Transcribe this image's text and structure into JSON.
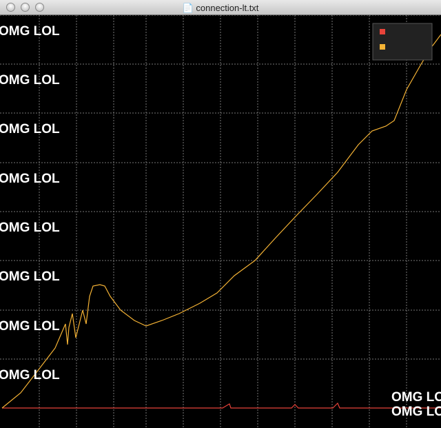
{
  "window_title": "connection-lt.txt",
  "chart_data": {
    "type": "line",
    "xlim": [
      -3,
      637
    ],
    "ylim": [
      -29,
      570
    ],
    "xticks": [
      54,
      108,
      162,
      209,
      263,
      317,
      371,
      425,
      479,
      533,
      587
    ],
    "yticks": [
      {
        "value": 71,
        "label": "OMG LOL"
      },
      {
        "value": 142,
        "label": "OMG LOL"
      },
      {
        "value": 214,
        "label": "OMG LOL"
      },
      {
        "value": 285,
        "label": "OMG LOL"
      },
      {
        "value": 356,
        "label": "OMG LOL"
      },
      {
        "value": 428,
        "label": "OMG LOL"
      },
      {
        "value": 499,
        "label": "OMG LOL"
      },
      {
        "value": 570,
        "label": "OMG LOL"
      }
    ],
    "right_labels": [
      "OMG LOL",
      "OMG LOL"
    ],
    "grid": true,
    "legend": "upper right",
    "series": [
      {
        "color": "#e8433a",
        "x": [
          0,
          320,
          330,
          332,
          420,
          425,
          430,
          480,
          487,
          490,
          637
        ],
        "values": [
          0,
          0,
          6,
          0,
          0,
          5,
          0,
          0,
          7,
          0,
          0
        ]
      },
      {
        "color": "#f5b335",
        "x": [
          0,
          27,
          54,
          77,
          92,
          95,
          97,
          102,
          107,
          117,
          122,
          127,
          132,
          142,
          149,
          157,
          172,
          192,
          209,
          232,
          257,
          287,
          312,
          337,
          367,
          397,
          427,
          457,
          487,
          517,
          537,
          557,
          569,
          587,
          607,
          622,
          637
        ],
        "values": [
          0,
          22,
          57,
          87,
          122,
          92,
          117,
          137,
          102,
          142,
          122,
          162,
          177,
          179,
          177,
          162,
          142,
          127,
          119,
          127,
          137,
          152,
          167,
          192,
          214,
          247,
          279,
          310,
          342,
          382,
          402,
          409,
          417,
          462,
          497,
          522,
          542
        ]
      }
    ]
  }
}
